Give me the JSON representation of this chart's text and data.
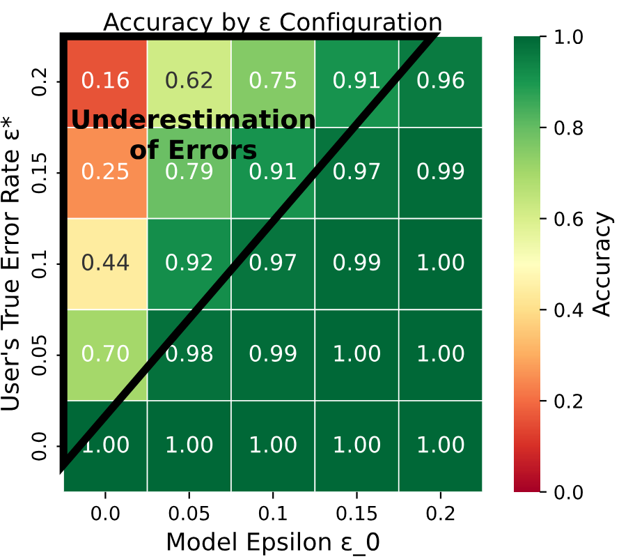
{
  "chart_data": {
    "type": "heatmap",
    "title": "Accuracy by ε Configuration",
    "xlabel": "Model Epsilon ε_0",
    "ylabel": "User's True Error Rate ε*",
    "clabel": "Accuracy",
    "categories": [
      "0.0",
      "0.05",
      "0.1",
      "0.15",
      "0.2"
    ],
    "y_categories": [
      "0.2",
      "0.15",
      "0.1",
      "0.05",
      "0.0"
    ],
    "cells": [
      [
        0.16,
        0.62,
        0.75,
        0.91,
        0.96
      ],
      [
        0.25,
        0.79,
        0.91,
        0.97,
        0.99
      ],
      [
        0.44,
        0.92,
        0.97,
        0.99,
        1.0
      ],
      [
        0.7,
        0.98,
        0.99,
        1.0,
        1.0
      ],
      [
        1.0,
        1.0,
        1.0,
        1.0,
        1.0
      ]
    ],
    "cell_labels": [
      [
        "0.16",
        "0.62",
        "0.75",
        "0.91",
        "0.96"
      ],
      [
        "0.25",
        "0.79",
        "0.91",
        "0.97",
        "0.99"
      ],
      [
        "0.44",
        "0.92",
        "0.97",
        "0.99",
        "1.00"
      ],
      [
        "0.70",
        "0.98",
        "0.99",
        "1.00",
        "1.00"
      ],
      [
        "1.00",
        "1.00",
        "1.00",
        "1.00",
        "1.00"
      ]
    ],
    "clim": [
      0,
      1
    ],
    "cticks": [
      {
        "value": 0,
        "label": "0.0"
      },
      {
        "value": 0.2,
        "label": "0.2"
      },
      {
        "value": 0.4,
        "label": "0.4"
      },
      {
        "value": 0.6,
        "label": "0.6"
      },
      {
        "value": 0.8,
        "label": "0.8"
      },
      {
        "value": 1,
        "label": "1.0"
      }
    ],
    "annotations": [
      "Underestimation\nof Errors"
    ]
  }
}
